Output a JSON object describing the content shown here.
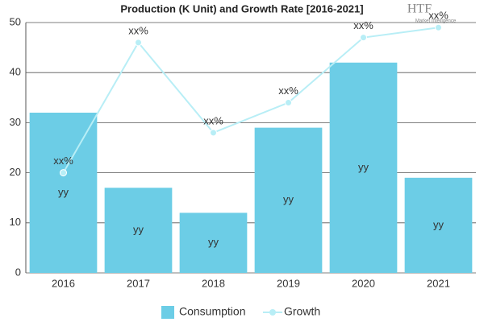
{
  "chart_data": {
    "type": "bar",
    "title": "Production (K Unit) and Growth Rate [2016-2021]",
    "categories": [
      "2016",
      "2017",
      "2018",
      "2019",
      "2020",
      "2021"
    ],
    "series": [
      {
        "name": "Consumption",
        "type": "bar",
        "color": "#6ccde6",
        "values": [
          32,
          17,
          12,
          29,
          42,
          19
        ],
        "value_labels": [
          "yy",
          "yy",
          "yy",
          "yy",
          "yy",
          "yy"
        ]
      },
      {
        "name": "Growth",
        "type": "line",
        "color": "#b8eef6",
        "values": [
          20,
          46,
          28,
          34,
          47,
          49
        ],
        "value_labels": [
          "xx%",
          "xx%",
          "xx%",
          "xx%",
          "xx%",
          "xx%"
        ]
      }
    ],
    "ylim": [
      0,
      50
    ],
    "yticks": [
      0,
      10,
      20,
      30,
      40,
      50
    ],
    "grid": true,
    "legend": "bottom"
  },
  "logo": {
    "text": "HTF",
    "subtext": "Market Intelligence"
  }
}
